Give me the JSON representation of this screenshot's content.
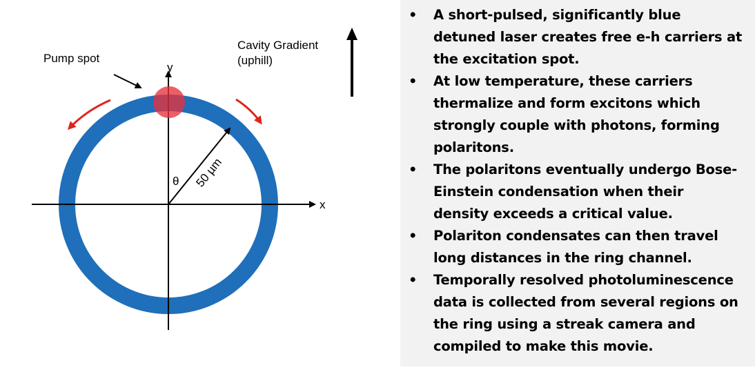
{
  "diagram": {
    "pump_label": "Pump spot",
    "gradient_label_line1": "Cavity Gradient",
    "gradient_label_line2": "(uphill)",
    "y_axis_label": "y",
    "x_axis_label": "x",
    "theta_label": "θ",
    "radius_label": "50 µm",
    "colors": {
      "ring": "#1f6fba",
      "pump_spot": "#e8323c",
      "flow_arrow": "#e0231c",
      "axes": "#000000"
    }
  },
  "bullets": [
    {
      "lines": [
        "A short-pulsed, significantly blue",
        "detuned laser creates free e-h carriers at",
        "the excitation spot."
      ]
    },
    {
      "lines": [
        "At low temperature, these carriers",
        "thermalize and form excitons which",
        "strongly couple with photons, forming",
        "polaritons."
      ]
    },
    {
      "lines": [
        "The polaritons eventually undergo Bose-",
        "Einstein condensation when their",
        "density exceeds a critical value."
      ]
    },
    {
      "lines": [
        "Polariton condensates can then travel",
        "long distances in the ring channel."
      ]
    },
    {
      "lines": [
        "Temporally resolved photoluminescence",
        "data is collected from several regions on",
        "the ring using a streak camera and",
        "compiled to make this movie."
      ]
    }
  ],
  "bullet_symbol": "•"
}
